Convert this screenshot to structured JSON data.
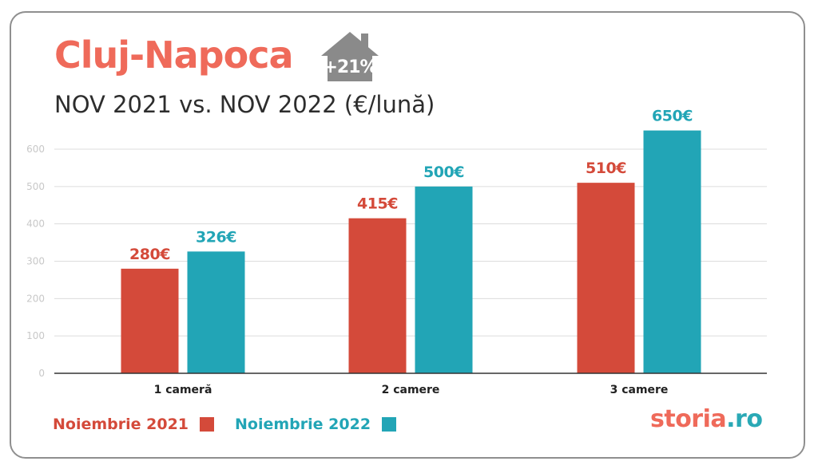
{
  "header": {
    "title": "Cluj-Napoca",
    "badge_text": "+21%",
    "subtitle": "NOV 2021 vs. NOV 2022 (€/lună)"
  },
  "colors": {
    "title": "#ef6a5a",
    "series_2021": "#d44a3a",
    "series_2022": "#22a5b6",
    "badge": "#8a8a8a",
    "grid": "#dcdcdc",
    "axis": "#333333"
  },
  "chart_data": {
    "type": "bar",
    "categories": [
      "1 cameră",
      "2 camere",
      "3 camere"
    ],
    "series": [
      {
        "name": "Noiembrie 2021",
        "values": [
          280,
          415,
          510
        ],
        "labels": [
          "280€",
          "415€",
          "510€"
        ]
      },
      {
        "name": "Noiembrie 2022",
        "values": [
          326,
          500,
          650
        ],
        "labels": [
          "326€",
          "500€",
          "650€"
        ]
      }
    ],
    "ylim": [
      0,
      600
    ],
    "yticks": [
      0,
      100,
      200,
      300,
      400,
      500,
      600
    ],
    "grid": true,
    "legend_position": "bottom-left"
  },
  "legend": {
    "items": [
      {
        "label": "Noiembrie 2021"
      },
      {
        "label": "Noiembrie 2022"
      }
    ]
  },
  "logo": {
    "part1": "storia",
    "part2": ".ro"
  }
}
